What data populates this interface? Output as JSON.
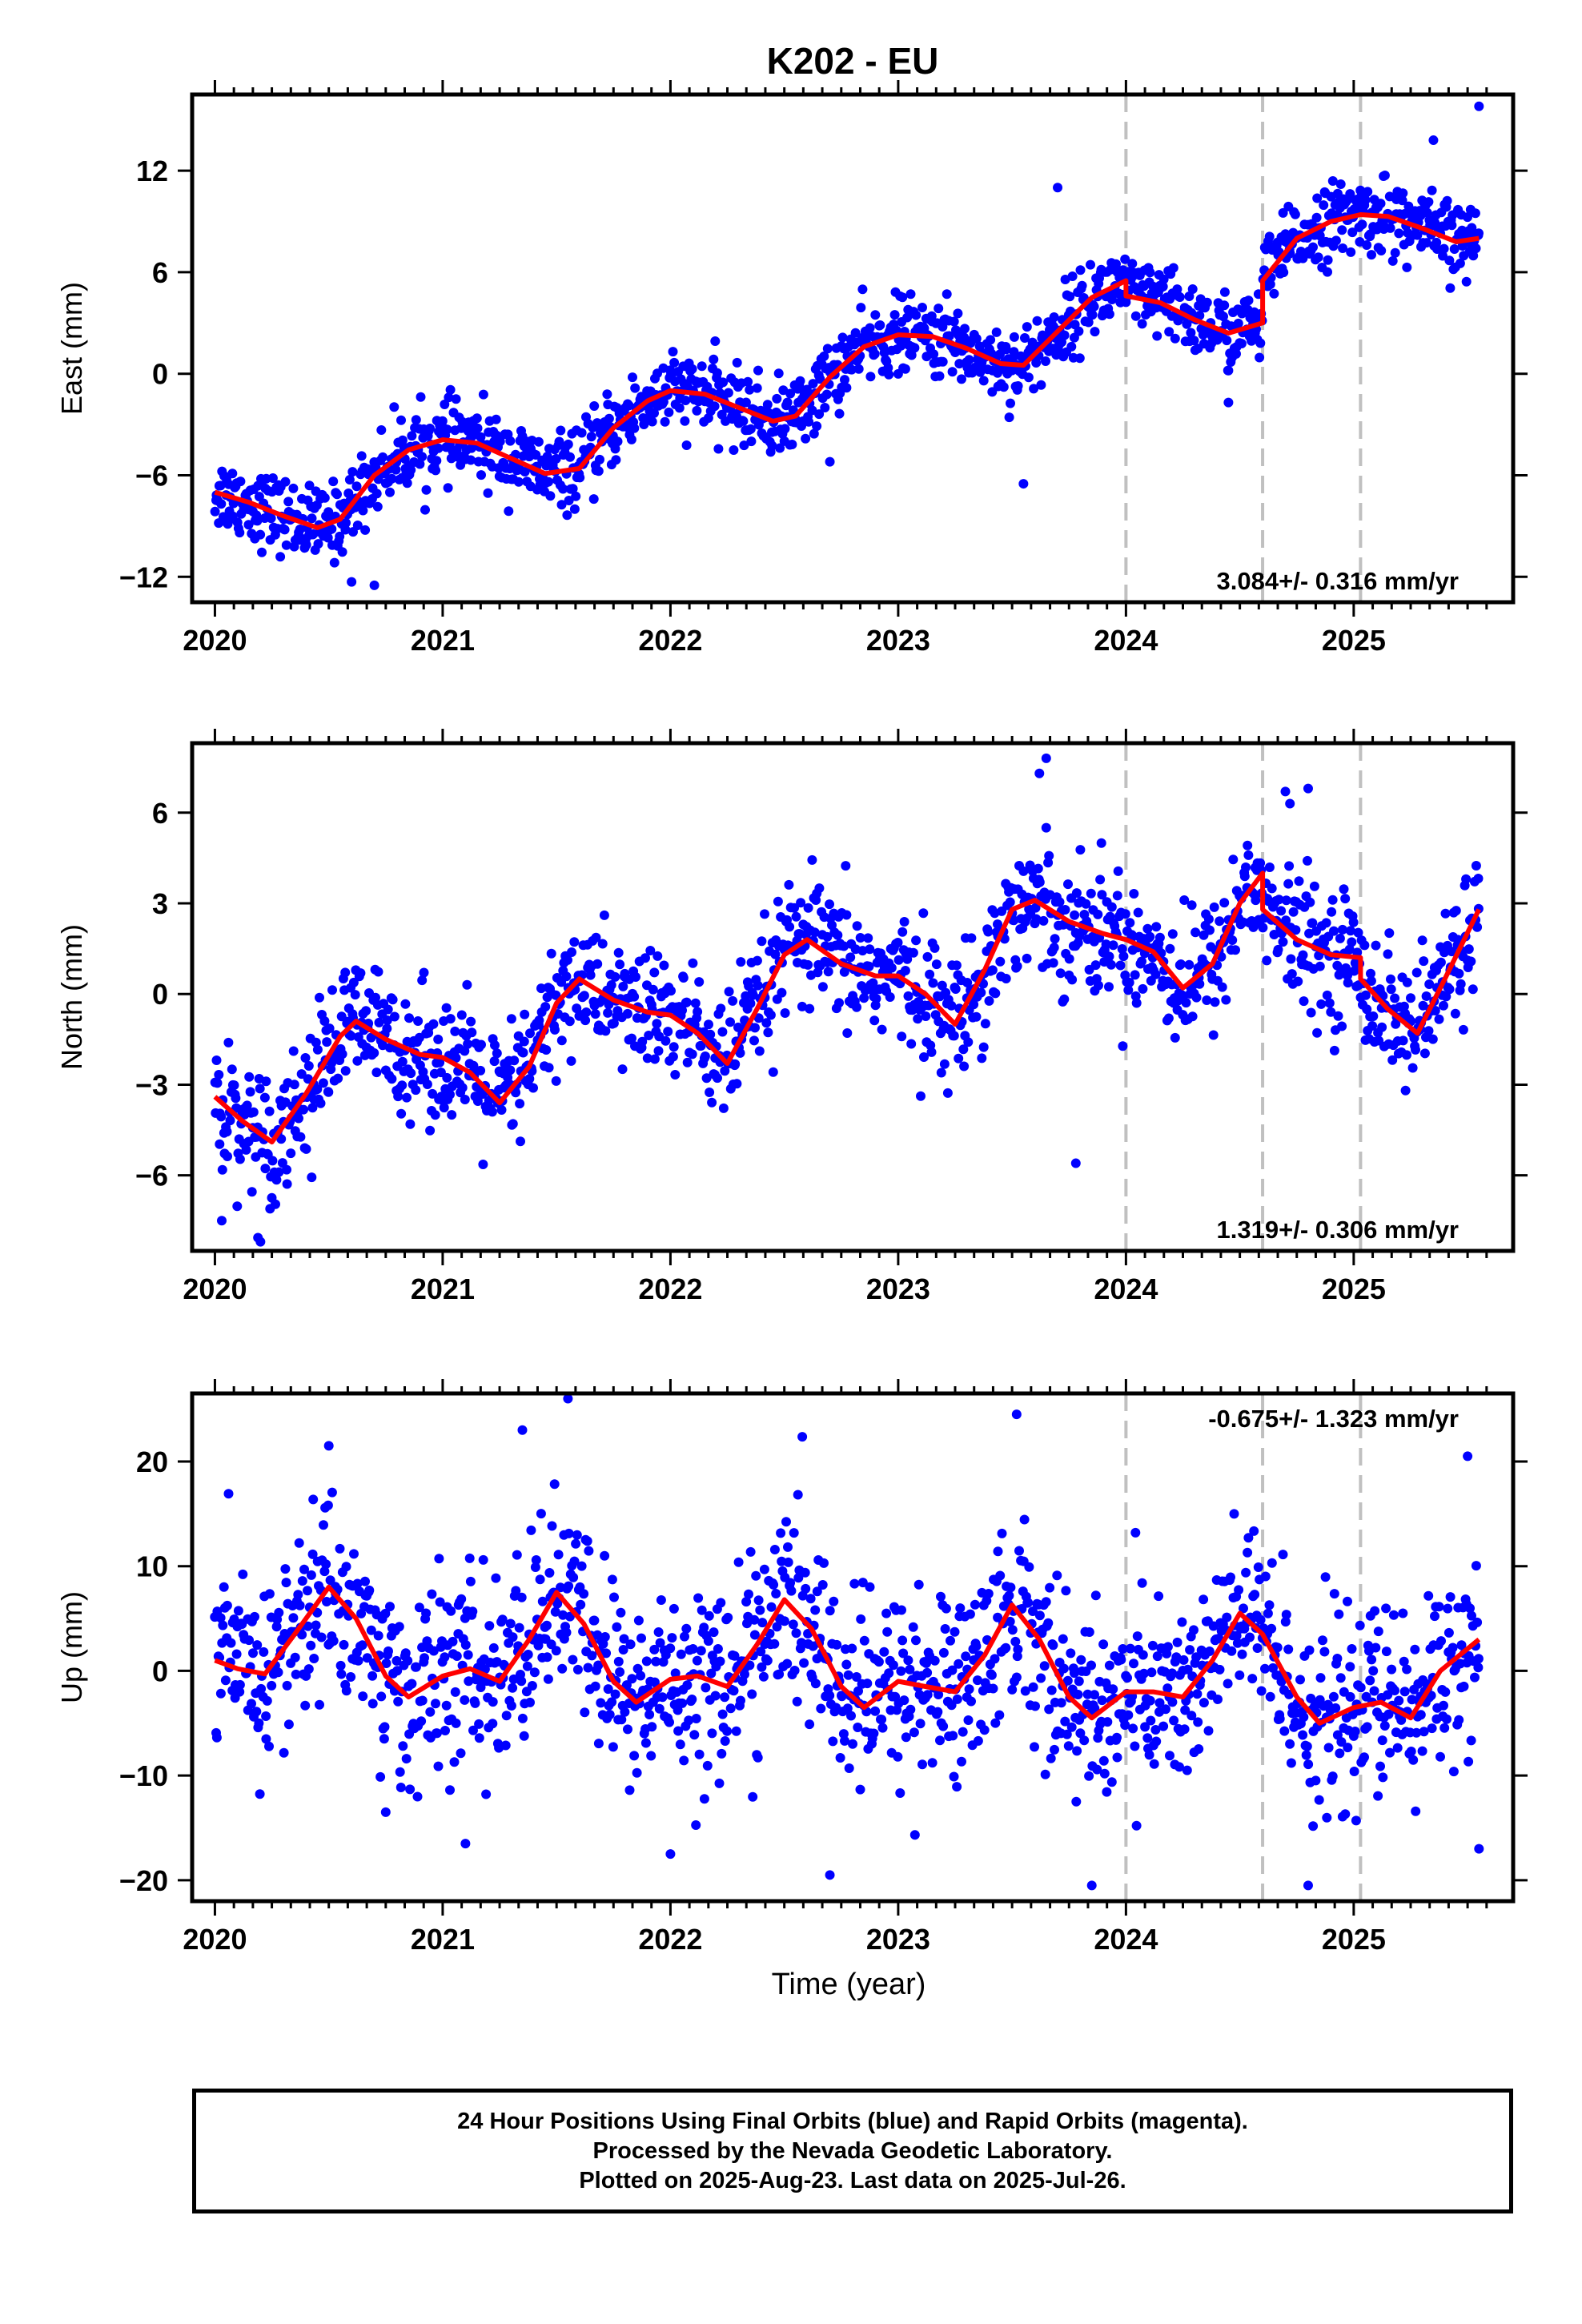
{
  "title": "K202 - EU",
  "footer": {
    "line1": "24 Hour Positions Using Final Orbits (blue) and Rapid Orbits (magenta).",
    "line2": "Processed by the Nevada Geodetic Laboratory.",
    "line3": "Plotted on 2025-Aug-23. Last data on 2025-Jul-26."
  },
  "colors": {
    "points": "#0000ff",
    "model": "#ff0000",
    "breaks": "#c0c0c0",
    "frame": "#000000"
  },
  "chart_data": [
    {
      "type": "scatter",
      "title": "K202 - EU",
      "ylabel": "East (mm)",
      "xlabel": "",
      "xlim": [
        2019.9,
        2025.7
      ],
      "ylim": [
        -13.5,
        16.5
      ],
      "yticks": [
        -12,
        -6,
        0,
        6,
        12
      ],
      "xticks": [
        2020,
        2021,
        2022,
        2023,
        2024,
        2025
      ],
      "rate_label": "3.084+/- 0.316 mm/yr",
      "rate_position": "bottom-right",
      "breaks": [
        2024.0,
        2024.6,
        2025.03
      ],
      "model": {
        "x": [
          2020.0,
          2020.15,
          2020.3,
          2020.45,
          2020.55,
          2020.7,
          2020.85,
          2021.0,
          2021.15,
          2021.3,
          2021.45,
          2021.6,
          2021.75,
          2021.9,
          2022.0,
          2022.15,
          2022.3,
          2022.45,
          2022.55,
          2022.7,
          2022.85,
          2023.0,
          2023.15,
          2023.3,
          2023.45,
          2023.55,
          2023.7,
          2023.85,
          2024.0,
          2024.0,
          2024.15,
          2024.3,
          2024.45,
          2024.6,
          2024.6,
          2024.75,
          2024.9,
          2025.03,
          2025.15,
          2025.3,
          2025.45,
          2025.55
        ],
        "y": [
          -7.0,
          -7.6,
          -8.4,
          -9.1,
          -8.6,
          -6.0,
          -4.5,
          -3.9,
          -4.1,
          -5.0,
          -5.9,
          -5.6,
          -3.2,
          -1.6,
          -1.0,
          -1.2,
          -2.0,
          -2.8,
          -2.5,
          -0.2,
          1.6,
          2.3,
          2.2,
          1.5,
          0.6,
          0.5,
          2.5,
          4.5,
          5.5,
          4.6,
          4.2,
          3.2,
          2.4,
          3.0,
          5.5,
          8.0,
          9.0,
          9.4,
          9.3,
          8.6,
          7.8,
          8.0
        ]
      },
      "noise_sigma": 1.1,
      "outliers": {
        "x": [
          2023.7,
          2025.55,
          2022.7,
          2020.6,
          2020.7,
          2023.55,
          2025.35,
          2024.45
        ],
        "y": [
          11.0,
          15.8,
          -5.2,
          -12.3,
          -12.5,
          -6.5,
          13.8,
          -1.7
        ]
      }
    },
    {
      "type": "scatter",
      "ylabel": "North (mm)",
      "xlabel": "",
      "xlim": [
        2019.9,
        2025.7
      ],
      "ylim": [
        -8.5,
        8.3
      ],
      "yticks": [
        -6,
        -3,
        0,
        3,
        6
      ],
      "xticks": [
        2020,
        2021,
        2022,
        2023,
        2024,
        2025
      ],
      "rate_label": "1.319+/- 0.306 mm/yr",
      "rate_position": "bottom-right",
      "breaks": [
        2024.0,
        2024.6,
        2025.03
      ],
      "model": {
        "x": [
          2020.0,
          2020.12,
          2020.25,
          2020.4,
          2020.55,
          2020.62,
          2020.75,
          2020.9,
          2021.0,
          2021.12,
          2021.25,
          2021.38,
          2021.5,
          2021.6,
          2021.75,
          2021.9,
          2022.0,
          2022.12,
          2022.25,
          2022.38,
          2022.5,
          2022.6,
          2022.75,
          2022.9,
          2023.0,
          2023.12,
          2023.25,
          2023.38,
          2023.5,
          2023.6,
          2023.75,
          2023.9,
          2024.0,
          2024.12,
          2024.25,
          2024.38,
          2024.5,
          2024.6,
          2024.6,
          2024.75,
          2024.9,
          2025.03,
          2025.03,
          2025.15,
          2025.28,
          2025.4,
          2025.55
        ],
        "y": [
          -3.4,
          -4.2,
          -4.9,
          -3.3,
          -1.4,
          -0.9,
          -1.5,
          -2.0,
          -2.1,
          -2.6,
          -3.6,
          -2.4,
          -0.3,
          0.5,
          -0.2,
          -0.6,
          -0.7,
          -1.3,
          -2.3,
          -0.5,
          1.3,
          1.8,
          1.0,
          0.6,
          0.6,
          0.0,
          -1.0,
          0.8,
          2.8,
          3.1,
          2.4,
          2.0,
          1.8,
          1.4,
          0.2,
          1.0,
          3.0,
          4.0,
          2.8,
          1.8,
          1.3,
          1.2,
          0.5,
          -0.5,
          -1.3,
          0.5,
          2.8
        ]
      },
      "noise_sigma": 1.05,
      "outliers": {
        "x": [
          2023.62,
          2023.65,
          2024.7,
          2024.72,
          2024.8,
          2023.78,
          2020.03,
          2020.2
        ],
        "y": [
          7.3,
          7.8,
          6.7,
          6.3,
          6.8,
          -5.6,
          -7.5,
          -8.2
        ]
      }
    },
    {
      "type": "scatter",
      "ylabel": "Up (mm)",
      "xlabel": "Time (year)",
      "xlim": [
        2019.9,
        2025.7
      ],
      "ylim": [
        -22,
        26.5
      ],
      "yticks": [
        -20,
        -10,
        0,
        10,
        20
      ],
      "xticks": [
        2020,
        2021,
        2022,
        2023,
        2024,
        2025
      ],
      "rate_label": "-0.675+/- 1.323 mm/yr",
      "rate_position": "top-right",
      "breaks": [
        2024.0,
        2024.6,
        2025.03
      ],
      "model": {
        "x": [
          2020.0,
          2020.1,
          2020.22,
          2020.35,
          2020.5,
          2020.62,
          2020.75,
          2020.85,
          2021.0,
          2021.12,
          2021.25,
          2021.38,
          2021.5,
          2021.62,
          2021.75,
          2021.85,
          2022.0,
          2022.12,
          2022.25,
          2022.38,
          2022.5,
          2022.62,
          2022.75,
          2022.85,
          2023.0,
          2023.12,
          2023.25,
          2023.38,
          2023.5,
          2023.62,
          2023.75,
          2023.85,
          2024.0,
          2024.12,
          2024.25,
          2024.38,
          2024.5,
          2024.6,
          2024.75,
          2024.85,
          2025.0,
          2025.12,
          2025.25,
          2025.38,
          2025.55
        ],
        "y": [
          1.0,
          0.2,
          -0.3,
          3.5,
          8.0,
          5.0,
          -0.5,
          -2.5,
          -0.5,
          0.2,
          -1.0,
          3.0,
          7.5,
          4.5,
          -1.0,
          -3.0,
          -0.8,
          -0.5,
          -1.5,
          2.5,
          6.8,
          4.0,
          -1.5,
          -3.5,
          -1.0,
          -1.5,
          -2.0,
          1.5,
          6.3,
          3.0,
          -2.5,
          -4.5,
          -2.0,
          -2.0,
          -2.5,
          1.0,
          5.5,
          3.5,
          -2.5,
          -5.0,
          -3.5,
          -3.0,
          -4.5,
          0.0,
          3.0
        ]
      },
      "noise_sigma": 4.6,
      "outliers": {
        "x": [
          2021.55,
          2021.35,
          2023.52,
          2025.5,
          2023.85,
          2024.8,
          2022.7,
          2020.75,
          2022.0,
          2021.1,
          2025.55,
          2020.5
        ],
        "y": [
          26.0,
          23.0,
          24.5,
          20.5,
          -20.5,
          -20.5,
          -19.5,
          -13.5,
          -17.5,
          -16.5,
          -17.0,
          21.5
        ]
      }
    }
  ]
}
